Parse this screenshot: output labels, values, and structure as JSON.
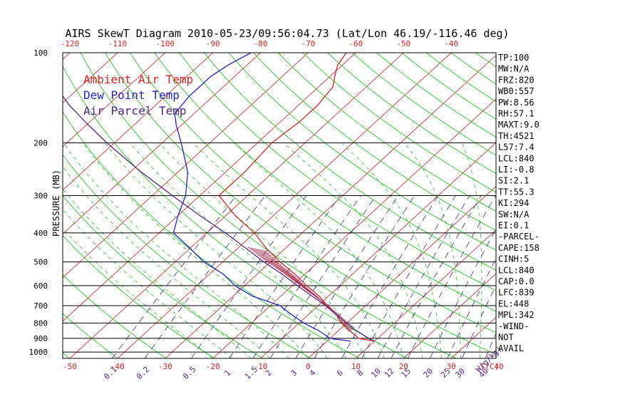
{
  "chart_data": {
    "type": "skew-t",
    "title": "AIRS SkewT Diagram 2010-05-23/09:56:04.73 (Lat/Lon 46.19/-116.46 deg)",
    "ylabel": "PRESSURE (MB)",
    "x_bottom_unit": "T(C)",
    "mixing_ratio_unit": "W(g/kg)",
    "ylim": [
      1050,
      100
    ],
    "y_scale": "log",
    "temp_range_bottom": [
      -50,
      40
    ],
    "pressure_ticks": [
      100,
      200,
      300,
      400,
      500,
      600,
      700,
      800,
      900,
      1000
    ],
    "top_temp_ticks": [
      -120,
      -110,
      -100,
      -90,
      -80,
      -70,
      -60,
      -50,
      -40
    ],
    "bottom_temp_ticks": [
      -50,
      -40,
      -30,
      -20,
      -10,
      0,
      10,
      20,
      30,
      40
    ],
    "mixing_ratio_ticks": [
      "0.1",
      "0.2",
      "0.5",
      "1",
      "1.5",
      "2",
      "3",
      "4",
      "6",
      "8",
      "10",
      "12",
      "15",
      "20",
      "25",
      "30",
      "40"
    ],
    "legend": [
      {
        "label": "Ambient Air Temp",
        "color": "#dd2222"
      },
      {
        "label": "Dew Point Temp",
        "color": "#2222cc"
      },
      {
        "label": "Air Parcel Temp",
        "color": "#552288"
      }
    ],
    "colors": {
      "isotherm": "#dd3333",
      "dry_adiabat": "#22cc22",
      "moist_adiabat": "#22cc22",
      "mixing_ratio": "#3a2a99",
      "isobar": "#000000",
      "temperature": "#dd2222",
      "dewpoint": "#2222cc",
      "parcel": "#552288"
    },
    "series": [
      {
        "name": "Ambient Air Temp",
        "points": [
          [
            920,
            10
          ],
          [
            900,
            6
          ],
          [
            850,
            2.5
          ],
          [
            800,
            -1
          ],
          [
            750,
            -4
          ],
          [
            700,
            -8
          ],
          [
            650,
            -12
          ],
          [
            600,
            -17
          ],
          [
            550,
            -22
          ],
          [
            500,
            -28
          ],
          [
            450,
            -34
          ],
          [
            400,
            -40
          ],
          [
            350,
            -48
          ],
          [
            300,
            -56
          ],
          [
            250,
            -56
          ],
          [
            200,
            -57
          ],
          [
            170,
            -56
          ],
          [
            150,
            -56
          ],
          [
            130,
            -57
          ],
          [
            120,
            -59
          ],
          [
            110,
            -61
          ],
          [
            100,
            -62
          ]
        ]
      },
      {
        "name": "Dew Point Temp",
        "points": [
          [
            920,
            5
          ],
          [
            900,
            0
          ],
          [
            850,
            -4
          ],
          [
            800,
            -9
          ],
          [
            750,
            -13.5
          ],
          [
            700,
            -18
          ],
          [
            650,
            -26
          ],
          [
            600,
            -32
          ],
          [
            550,
            -37
          ],
          [
            500,
            -44
          ],
          [
            450,
            -50
          ],
          [
            400,
            -57
          ],
          [
            350,
            -60
          ],
          [
            300,
            -63
          ],
          [
            250,
            -68
          ],
          [
            200,
            -76
          ],
          [
            175,
            -81
          ],
          [
            160,
            -84
          ],
          [
            140,
            -85
          ],
          [
            120,
            -85
          ],
          [
            110,
            -84
          ],
          [
            100,
            -82
          ]
        ]
      },
      {
        "name": "Air Parcel Temp",
        "points": [
          [
            920,
            10
          ],
          [
            900,
            8
          ],
          [
            850,
            4
          ],
          [
            840,
            3
          ],
          [
            800,
            0
          ],
          [
            750,
            -4
          ],
          [
            700,
            -8.4
          ],
          [
            650,
            -13.5
          ],
          [
            600,
            -18.9
          ],
          [
            550,
            -24.7
          ],
          [
            500,
            -31.4
          ],
          [
            450,
            -38.3
          ],
          [
            400,
            -46.1
          ],
          [
            350,
            -55.4
          ],
          [
            300,
            -65.8
          ],
          [
            250,
            -77.8
          ],
          [
            200,
            -91.6
          ],
          [
            170,
            -101
          ],
          [
            150,
            -108
          ],
          [
            120,
            -119
          ],
          [
            100,
            -127
          ]
        ]
      }
    ]
  },
  "indices": [
    "TP:100",
    "MW:N/A",
    "FRZ:820",
    "WB0:557",
    "PW:8.56",
    "RH:57.1",
    "MAXT:9.0",
    "TH:4521",
    "L57:7.4",
    "LCL:840",
    "LI:-0.8",
    "SI:2.1",
    "TT:55.3",
    "KI:294",
    "SW:N/A",
    "EI:0.1",
    "-PARCEL-",
    "CAPE:158",
    "CINH:5",
    "LCL:840",
    "CAP:0.0",
    "LFC:839",
    "EL:448",
    "MPL:342",
    "-WIND-",
    "NOT",
    "AVAIL"
  ]
}
